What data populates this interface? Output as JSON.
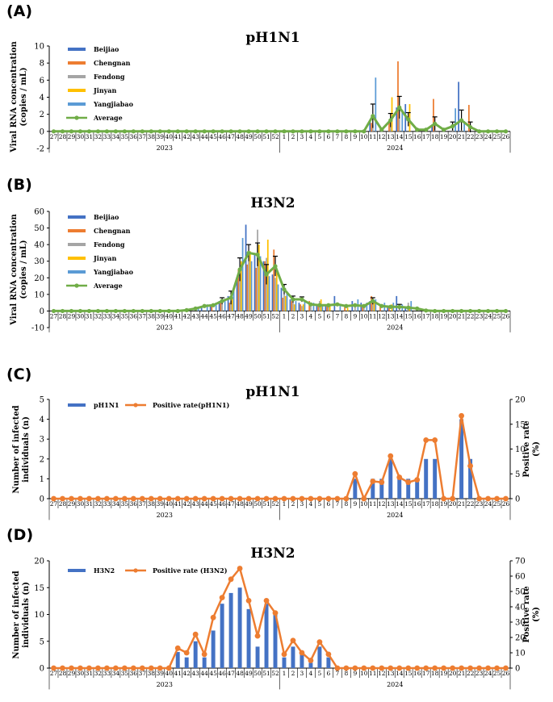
{
  "colors": {
    "Beijiao": "#4472C4",
    "Chengnan": "#ED7D31",
    "Fendong": "#A5A5A5",
    "Jinyan": "#FFC000",
    "Yangjiabao": "#5B9BD5",
    "Average": "#70AD47",
    "infected": "#4472C4",
    "rate": "#ED7D31"
  },
  "weeks": [
    "27",
    "28",
    "29",
    "30",
    "31",
    "32",
    "33",
    "34",
    "35",
    "36",
    "37",
    "38",
    "39",
    "40",
    "41",
    "42",
    "43",
    "44",
    "45",
    "46",
    "47",
    "48",
    "49",
    "50",
    "51",
    "52",
    "1",
    "2",
    "3",
    "4",
    "5",
    "6",
    "7",
    "8",
    "9",
    "10",
    "11",
    "12",
    "13",
    "14",
    "15",
    "16",
    "17",
    "18",
    "19",
    "20",
    "21",
    "22",
    "23",
    "24",
    "25",
    "26"
  ],
  "years": [
    "2023",
    "2024"
  ],
  "chart_data": [
    {
      "panel": "(A)",
      "type": "bar",
      "title": "pH1N1",
      "ylabel": "Viral RNA concentration (copies / mL)",
      "ylabel_lines": [
        "Viral RNA concentration",
        "(copies / mL)"
      ],
      "ylim": [
        -2,
        10
      ],
      "yticks": [
        -2,
        0,
        2,
        4,
        6,
        8,
        10
      ],
      "series": [
        {
          "name": "Beijiao",
          "type": "bar",
          "values": {
            "11": 1.2,
            "14": 2.8,
            "15": 3.2,
            "18": 0.8,
            "21": 5.8
          }
        },
        {
          "name": "Chengnan",
          "type": "bar",
          "values": {
            "11": 1.0,
            "13": 1.2,
            "14": 8.2,
            "18": 3.8,
            "22": 3.1
          }
        },
        {
          "name": "Fendong",
          "type": "bar",
          "values": {
            "11": 0.8,
            "13": 0.5,
            "14": 1.5,
            "20": 0.8
          }
        },
        {
          "name": "Jinyan",
          "type": "bar",
          "values": {
            "13": 4.0,
            "15": 3.2
          }
        },
        {
          "name": "Yangjiabao",
          "type": "bar",
          "values": {
            "11": 6.3,
            "14": 2.5,
            "20": 2.7,
            "21": 1.2
          }
        },
        {
          "name": "Average",
          "type": "line",
          "values": {
            "11": 1.8,
            "12": 0.2,
            "13": 1.3,
            "14": 2.8,
            "15": 1.4,
            "16": 0.2,
            "17": 0.2,
            "18": 0.9,
            "19": 0.2,
            "20": 0.6,
            "21": 1.3,
            "22": 0.5
          },
          "errors": {
            "11": 1.4,
            "13": 0.8,
            "14": 1.3,
            "15": 0.8,
            "18": 0.8,
            "20": 0.5,
            "21": 1.2,
            "22": 0.6
          }
        }
      ],
      "legend": [
        "Beijiao",
        "Chengnan",
        "Fendong",
        "Jinyan",
        "Yangjiabao",
        "Average"
      ]
    },
    {
      "panel": "(B)",
      "type": "bar",
      "title": "H3N2",
      "ylabel": "Viral RNA concentration (copies / mL)",
      "ylabel_lines": [
        "Viral RNA concentration",
        "(copies / mL)"
      ],
      "ylim": [
        -10,
        60
      ],
      "yticks": [
        -10,
        0,
        10,
        20,
        30,
        40,
        50,
        60
      ],
      "series": [
        {
          "name": "Beijiao",
          "type": "bar",
          "values": {
            "44": 2,
            "45": 4,
            "46": 6,
            "47": 9,
            "48": 20,
            "49": 52,
            "50": 35,
            "51": 30,
            "52": 22,
            "1": 14,
            "2": 7,
            "3": 5,
            "5": 4,
            "6": 4,
            "7": 9,
            "9": 6,
            "10": 5,
            "11": 6,
            "13": 3,
            "14": 9,
            "15": 2
          }
        },
        {
          "name": "Chengnan",
          "type": "bar",
          "values": {
            "45": 3,
            "46": 5,
            "47": 5,
            "48": 25,
            "49": 28,
            "50": 26,
            "51": 30,
            "52": 37,
            "1": 8,
            "2": 6,
            "3": 4,
            "4": 6,
            "5": 4,
            "6": 3,
            "8": 3,
            "10": 3,
            "11": 9,
            "12": 3,
            "13": 2
          }
        },
        {
          "name": "Fendong",
          "type": "bar",
          "values": {
            "46": 4,
            "47": 6,
            "48": 22,
            "49": 30,
            "50": 49,
            "51": 32,
            "52": 20,
            "1": 10,
            "2": 5,
            "3": 3,
            "4": 4,
            "5": 6,
            "6": 4,
            "9": 4,
            "10": 4,
            "11": 7,
            "14": 4,
            "15": 5
          }
        },
        {
          "name": "Jinyan",
          "type": "bar",
          "values": {
            "47": 8,
            "48": 30,
            "49": 36,
            "50": 40,
            "51": 43,
            "52": 25,
            "1": 9,
            "2": 4,
            "3": 4,
            "5": 7,
            "6": 4,
            "8": 2,
            "11": 6,
            "13": 4,
            "15": 3
          }
        },
        {
          "name": "Yangjiabao",
          "type": "bar",
          "values": {
            "43": 2,
            "44": 4,
            "45": 5,
            "46": 7,
            "47": 13,
            "48": 44,
            "49": 30,
            "50": 33,
            "51": 21,
            "52": 16,
            "1": 12,
            "2": 6,
            "3": 6,
            "4": 5,
            "5": 4,
            "7": 3,
            "9": 7,
            "10": 5,
            "11": 7,
            "12": 5,
            "13": 5,
            "14": 4,
            "15": 6
          }
        },
        {
          "name": "Average",
          "type": "line",
          "values": {
            "42": 0.5,
            "43": 1.5,
            "44": 3,
            "45": 3.5,
            "46": 6,
            "47": 8,
            "48": 25,
            "49": 35,
            "50": 34,
            "51": 22,
            "52": 27,
            "1": 13,
            "2": 7,
            "3": 7,
            "4": 4,
            "5": 3.5,
            "6": 3.5,
            "7": 4,
            "8": 3,
            "9": 3.5,
            "10": 3,
            "11": 6,
            "12": 3,
            "13": 2.5,
            "14": 2.5,
            "15": 2,
            "16": 1.5,
            "17": 0.3
          },
          "errors": {
            "46": 2,
            "47": 4,
            "48": 7,
            "49": 5,
            "50": 7,
            "51": 6,
            "52": 6,
            "1": 3,
            "2": 2,
            "3": 1.5,
            "11": 2,
            "14": 1.5
          }
        }
      ],
      "legend": [
        "Beijiao",
        "Chengnan",
        "Fendong",
        "Jinyan",
        "Yangjiabao",
        "Average"
      ]
    },
    {
      "panel": "(C)",
      "type": "bar",
      "title": "pH1N1",
      "ylabel": "Number of infected individuals (n)",
      "ylabel_lines": [
        "Number of infected",
        "individuals (n)"
      ],
      "y2label": "Positive rate (%)",
      "y2label_lines": [
        "Positive rate",
        "(%)"
      ],
      "ylim": [
        0,
        5
      ],
      "yticks": [
        0,
        1,
        2,
        3,
        4,
        5
      ],
      "y2lim": [
        0,
        20
      ],
      "y2ticks": [
        0,
        5,
        10,
        15,
        20
      ],
      "series": [
        {
          "name": "pH1N1",
          "type": "bar",
          "axis": "left",
          "values": {
            "9": 1,
            "11": 1,
            "12": 1,
            "13": 2,
            "14": 1,
            "15": 1,
            "16": 1,
            "17": 2,
            "18": 2,
            "21": 4,
            "22": 2
          }
        },
        {
          "name": "Positive rate(pH1N1)",
          "type": "line",
          "axis": "right",
          "values": {
            "9": 5.0,
            "10": 0,
            "11": 3.5,
            "12": 3.3,
            "13": 8.6,
            "14": 4.3,
            "15": 3.3,
            "16": 3.8,
            "17": 11.8,
            "18": 11.8,
            "19": 0,
            "20": 0,
            "21": 16.7,
            "22": 6.6,
            "23": 0
          }
        }
      ],
      "legend": [
        "pH1N1",
        "Positive rate(pH1N1)"
      ]
    },
    {
      "panel": "(D)",
      "type": "bar",
      "title": "H3N2",
      "ylabel": "Number of infected individuals (n)",
      "ylabel_lines": [
        "Number of infected",
        "individuals (n)"
      ],
      "y2label": "Positive rate (%)",
      "y2label_lines": [
        "Positive rate",
        "(%)"
      ],
      "ylim": [
        0,
        20
      ],
      "yticks": [
        0,
        5,
        10,
        15,
        20
      ],
      "y2lim": [
        0,
        70
      ],
      "y2ticks": [
        0,
        10,
        20,
        30,
        40,
        50,
        60,
        70
      ],
      "series": [
        {
          "name": "H3N2",
          "type": "bar",
          "axis": "left",
          "values": {
            "41": 3,
            "42": 2,
            "43": 5,
            "44": 2,
            "45": 7,
            "46": 12,
            "47": 14,
            "48": 15,
            "49": 11,
            "50": 4,
            "51": 12,
            "52": 10,
            "1": 2,
            "2": 4,
            "3": 3,
            "4": 1,
            "5": 4,
            "6": 2
          }
        },
        {
          "name": "Positive rate (H3N2)",
          "type": "line",
          "axis": "right",
          "values": {
            "40": 0,
            "41": 13,
            "42": 10,
            "43": 22,
            "44": 9,
            "45": 33,
            "46": 46,
            "47": 58,
            "48": 65,
            "49": 44,
            "50": 21,
            "51": 44,
            "52": 36,
            "1": 9,
            "2": 18,
            "3": 10,
            "4": 5,
            "5": 17,
            "6": 9,
            "7": 0
          }
        }
      ],
      "legend": [
        "H3N2",
        "Positive rate (H3N2)"
      ]
    }
  ]
}
